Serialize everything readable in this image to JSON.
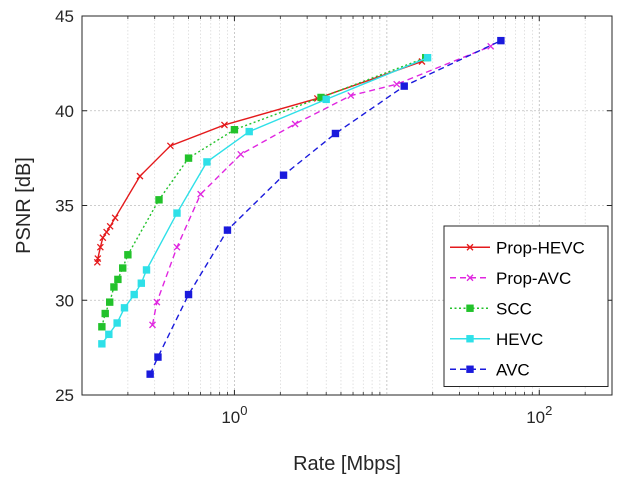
{
  "chart_data": {
    "type": "line",
    "xscale": "log",
    "xlabel": "Rate [Mbps]",
    "ylabel": "PSNR [dB]",
    "xlim": [
      0.1,
      300
    ],
    "ylim": [
      25,
      45
    ],
    "x_ticks": [
      1,
      100
    ],
    "x_tick_labels": [
      "10^0",
      "10^2"
    ],
    "y_ticks": [
      25,
      30,
      35,
      40,
      45
    ],
    "y_tick_labels": [
      "25",
      "30",
      "35",
      "40",
      "45"
    ],
    "grid": true,
    "minor_grid": true,
    "legend_position": "bottom-right",
    "series": [
      {
        "name": "Prop-HEVC",
        "color": "#e41a1c",
        "line": "solid",
        "marker": "x",
        "x": [
          0.126,
          0.127,
          0.132,
          0.137,
          0.145,
          0.153,
          0.165,
          0.24,
          0.38,
          0.86,
          3.5,
          17.0
        ],
        "y": [
          32.0,
          32.2,
          32.8,
          33.3,
          33.6,
          33.9,
          34.35,
          36.55,
          38.15,
          39.25,
          40.65,
          42.6
        ]
      },
      {
        "name": "Prop-AVC",
        "color": "#e026e0",
        "line": "dashed",
        "marker": "x",
        "x": [
          0.29,
          0.31,
          0.42,
          0.6,
          1.1,
          2.5,
          5.8,
          11.6,
          48.0
        ],
        "y": [
          28.7,
          29.9,
          32.8,
          35.6,
          37.7,
          39.3,
          40.8,
          41.4,
          43.4
        ]
      },
      {
        "name": "SCC",
        "color": "#22c22b",
        "line": "dotted",
        "marker": "square",
        "x": [
          0.135,
          0.142,
          0.152,
          0.162,
          0.172,
          0.185,
          0.2,
          0.32,
          0.5,
          1.0,
          3.7,
          18.0
        ],
        "y": [
          28.6,
          29.3,
          29.9,
          30.7,
          31.1,
          31.7,
          32.4,
          35.3,
          37.5,
          39.0,
          40.7,
          42.8
        ]
      },
      {
        "name": "HEVC",
        "color": "#2ee0e8",
        "line": "solid",
        "marker": "square",
        "x": [
          0.135,
          0.15,
          0.17,
          0.19,
          0.22,
          0.245,
          0.265,
          0.42,
          0.66,
          1.25,
          4.0,
          18.5
        ],
        "y": [
          27.7,
          28.2,
          28.8,
          29.6,
          30.3,
          30.9,
          31.6,
          34.6,
          37.3,
          38.9,
          40.6,
          42.8
        ]
      },
      {
        "name": "AVC",
        "color": "#1a1adc",
        "line": "dashed",
        "marker": "square",
        "x": [
          0.28,
          0.315,
          0.5,
          0.9,
          2.1,
          4.6,
          13.0,
          56.0
        ],
        "y": [
          26.1,
          27.0,
          30.3,
          33.7,
          36.6,
          38.8,
          41.3,
          43.7
        ]
      }
    ]
  }
}
